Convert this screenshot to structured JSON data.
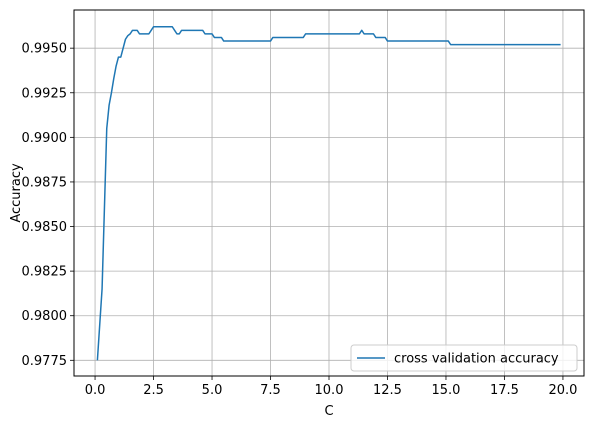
{
  "chart_data": {
    "type": "line",
    "title": "",
    "xlabel": "C",
    "ylabel": "Accuracy",
    "xlim": [
      -0.9,
      20.9
    ],
    "ylim": [
      0.97662,
      0.99714
    ],
    "xticks": [
      0.0,
      2.5,
      5.0,
      7.5,
      10.0,
      12.5,
      15.0,
      17.5,
      20.0
    ],
    "xtick_labels": [
      "0.0",
      "2.5",
      "5.0",
      "7.5",
      "10.0",
      "12.5",
      "15.0",
      "17.5",
      "20.0"
    ],
    "yticks": [
      0.9775,
      0.98,
      0.9825,
      0.985,
      0.9875,
      0.99,
      0.9925,
      0.995
    ],
    "ytick_labels": [
      "0.9775",
      "0.9800",
      "0.9825",
      "0.9850",
      "0.9875",
      "0.9900",
      "0.9925",
      "0.9950"
    ],
    "grid": true,
    "legend_position": "lower right",
    "series": [
      {
        "name": "cross validation accuracy",
        "color": "#1f77b4",
        "x": [
          0.1,
          0.3,
          0.5,
          0.6,
          0.7,
          0.8,
          0.9,
          1.0,
          1.1,
          1.2,
          1.3,
          1.4,
          1.5,
          1.6,
          1.7,
          1.8,
          1.9,
          2.0,
          2.1,
          2.2,
          2.3,
          2.4,
          2.5,
          2.6,
          2.7,
          3.0,
          3.3,
          3.4,
          3.5,
          3.6,
          3.7,
          3.8,
          4.0,
          4.3,
          4.6,
          4.7,
          5.0,
          5.1,
          5.4,
          5.5,
          5.6,
          6.5,
          7.5,
          7.6,
          7.7,
          8.9,
          9.0,
          10.1,
          11.2,
          11.3,
          11.4,
          11.5,
          11.6,
          11.9,
          12.0,
          12.4,
          12.5,
          15.1,
          15.2,
          19.9
        ],
        "y": [
          0.9775,
          0.9815,
          0.9905,
          0.9918,
          0.9925,
          0.9933,
          0.994,
          0.9945,
          0.9945,
          0.995,
          0.9955,
          0.9957,
          0.9958,
          0.996,
          0.996,
          0.996,
          0.9958,
          0.9958,
          0.9958,
          0.9958,
          0.9958,
          0.996,
          0.9962,
          0.9962,
          0.9962,
          0.9962,
          0.9962,
          0.996,
          0.9958,
          0.9958,
          0.996,
          0.996,
          0.996,
          0.996,
          0.996,
          0.9958,
          0.9958,
          0.9956,
          0.9956,
          0.9954,
          0.9954,
          0.9954,
          0.9954,
          0.9956,
          0.9956,
          0.9956,
          0.9958,
          0.9958,
          0.9958,
          0.9958,
          0.996,
          0.9958,
          0.9958,
          0.9958,
          0.9956,
          0.9956,
          0.9954,
          0.9954,
          0.9952,
          0.9952
        ]
      }
    ]
  }
}
